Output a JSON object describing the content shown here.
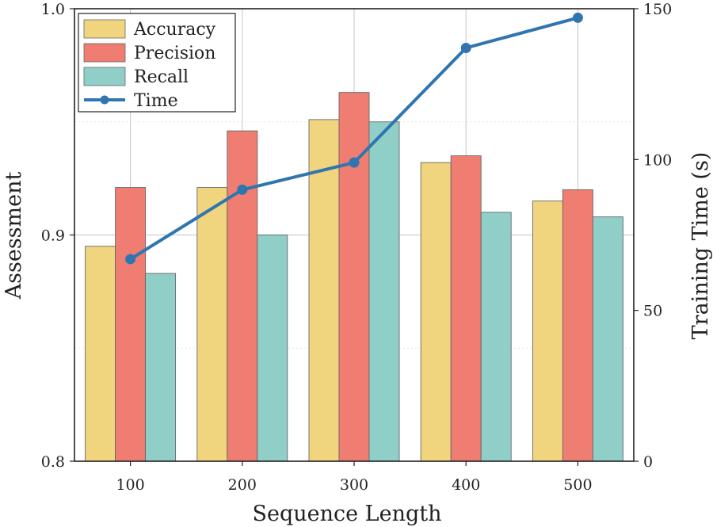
{
  "chart_data": {
    "type": "bar",
    "categories": [
      "100",
      "200",
      "300",
      "400",
      "500"
    ],
    "series": [
      {
        "name": "Accuracy",
        "color": "#f0d57e",
        "values": [
          0.895,
          0.921,
          0.951,
          0.932,
          0.915
        ]
      },
      {
        "name": "Precision",
        "color": "#f07d71",
        "values": [
          0.921,
          0.946,
          0.963,
          0.935,
          0.92
        ]
      },
      {
        "name": "Recall",
        "color": "#8fcfc8",
        "values": [
          0.883,
          0.9,
          0.95,
          0.91,
          0.908
        ]
      }
    ],
    "line_series": {
      "name": "Time",
      "color": "#2f76b0",
      "axis": "right",
      "values": [
        67,
        90,
        99,
        137,
        147
      ]
    },
    "xlabel": "Sequence Length",
    "ylabel": "Assessment",
    "y2label": "Training Time (s)",
    "ylim": [
      0.8,
      1.0
    ],
    "y2lim": [
      0,
      150
    ],
    "yticks": [
      "0.8",
      "0.9",
      "1.0"
    ],
    "y2ticks": [
      "0",
      "50",
      "100",
      "150"
    ],
    "legend_position": "top-left",
    "grid": true
  }
}
